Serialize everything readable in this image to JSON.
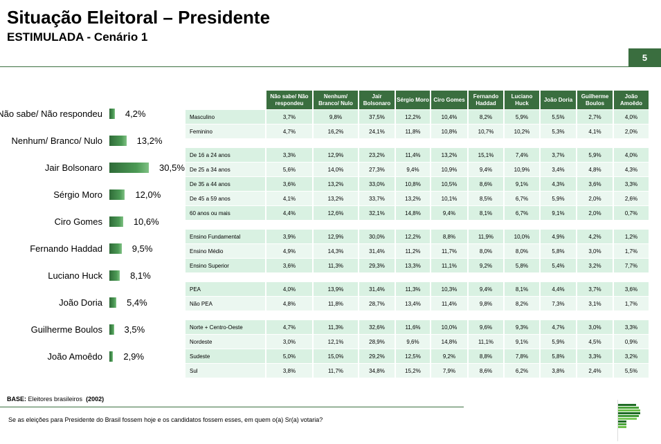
{
  "header": {
    "title": "Situação Eleitoral – Presidente",
    "subtitle": "ESTIMULADA - Cenário 1",
    "page_number": "5"
  },
  "chart_data": {
    "type": "bar",
    "orientation": "horizontal",
    "categories": [
      "Não sabe/ Não respondeu",
      "Nenhum/ Branco/ Nulo",
      "Jair Bolsonaro",
      "Sérgio Moro",
      "Ciro Gomes",
      "Fernando Haddad",
      "Luciano Huck",
      "João Doria",
      "Guilherme Boulos",
      "João Amoêdo"
    ],
    "values": [
      4.2,
      13.2,
      30.5,
      12.0,
      10.6,
      9.5,
      8.1,
      5.4,
      3.5,
      2.9
    ],
    "labels": [
      "4,2%",
      "13,2%",
      "30,5%",
      "12,0%",
      "10,6%",
      "9,5%",
      "8,1%",
      "5,4%",
      "3,5%",
      "2,9%"
    ],
    "color": "#3a7d44"
  },
  "table": {
    "columns": [
      "Não sabe/ Não respondeu",
      "Nenhum/ Branco/ Nulo",
      "Jair Bolsonaro",
      "Sérgio Moro",
      "Ciro Gomes",
      "Fernando Haddad",
      "Luciano Huck",
      "João Doria",
      "Guilherme Boulos",
      "João Amoêdo"
    ],
    "groups": [
      [
        {
          "label": "Masculino",
          "values": [
            "3,7%",
            "9,8%",
            "37,5%",
            "12,2%",
            "10,4%",
            "8,2%",
            "5,9%",
            "5,5%",
            "2,7%",
            "4,0%"
          ]
        },
        {
          "label": "Feminino",
          "values": [
            "4,7%",
            "16,2%",
            "24,1%",
            "11,8%",
            "10,8%",
            "10,7%",
            "10,2%",
            "5,3%",
            "4,1%",
            "2,0%"
          ]
        }
      ],
      [
        {
          "label": "De 16 a 24 anos",
          "values": [
            "3,3%",
            "12,9%",
            "23,2%",
            "11,4%",
            "13,2%",
            "15,1%",
            "7,4%",
            "3,7%",
            "5,9%",
            "4,0%"
          ]
        },
        {
          "label": "De 25 a 34 anos",
          "values": [
            "5,6%",
            "14,0%",
            "27,3%",
            "9,4%",
            "10,9%",
            "9,4%",
            "10,9%",
            "3,4%",
            "4,8%",
            "4,3%"
          ]
        },
        {
          "label": "De 35 a 44 anos",
          "values": [
            "3,6%",
            "13,2%",
            "33,0%",
            "10,8%",
            "10,5%",
            "8,6%",
            "9,1%",
            "4,3%",
            "3,6%",
            "3,3%"
          ]
        },
        {
          "label": "De 45 a 59 anos",
          "values": [
            "4,1%",
            "13,2%",
            "33,7%",
            "13,2%",
            "10,1%",
            "8,5%",
            "6,7%",
            "5,9%",
            "2,0%",
            "2,6%"
          ]
        },
        {
          "label": "60 anos ou mais",
          "values": [
            "4,4%",
            "12,6%",
            "32,1%",
            "14,8%",
            "9,4%",
            "8,1%",
            "6,7%",
            "9,1%",
            "2,0%",
            "0,7%"
          ]
        }
      ],
      [
        {
          "label": "Ensino Fundamental",
          "values": [
            "3,9%",
            "12,9%",
            "30,0%",
            "12,2%",
            "8,8%",
            "11,9%",
            "10,0%",
            "4,9%",
            "4,2%",
            "1,2%"
          ]
        },
        {
          "label": "Ensino Médio",
          "values": [
            "4,9%",
            "14,3%",
            "31,4%",
            "11,2%",
            "11,7%",
            "8,0%",
            "8,0%",
            "5,8%",
            "3,0%",
            "1,7%"
          ]
        },
        {
          "label": "Ensino Superior",
          "values": [
            "3,6%",
            "11,3%",
            "29,3%",
            "13,3%",
            "11,1%",
            "9,2%",
            "5,8%",
            "5,4%",
            "3,2%",
            "7,7%"
          ]
        }
      ],
      [
        {
          "label": "PEA",
          "values": [
            "4,0%",
            "13,9%",
            "31,4%",
            "11,3%",
            "10,3%",
            "9,4%",
            "8,1%",
            "4,4%",
            "3,7%",
            "3,6%"
          ]
        },
        {
          "label": "Não PEA",
          "values": [
            "4,8%",
            "11,8%",
            "28,7%",
            "13,4%",
            "11,4%",
            "9,8%",
            "8,2%",
            "7,3%",
            "3,1%",
            "1,7%"
          ]
        }
      ],
      [
        {
          "label": "Norte + Centro-Oeste",
          "values": [
            "4,7%",
            "11,3%",
            "32,6%",
            "11,6%",
            "10,0%",
            "9,6%",
            "9,3%",
            "4,7%",
            "3,0%",
            "3,3%"
          ]
        },
        {
          "label": "Nordeste",
          "values": [
            "3,0%",
            "12,1%",
            "28,9%",
            "9,6%",
            "14,8%",
            "11,1%",
            "9,1%",
            "5,9%",
            "4,5%",
            "0,9%"
          ]
        },
        {
          "label": "Sudeste",
          "values": [
            "5,0%",
            "15,0%",
            "29,2%",
            "12,5%",
            "9,2%",
            "8,8%",
            "7,8%",
            "5,8%",
            "3,3%",
            "3,2%"
          ]
        },
        {
          "label": "Sul",
          "values": [
            "3,8%",
            "11,7%",
            "34,8%",
            "15,2%",
            "7,9%",
            "8,6%",
            "6,2%",
            "3,8%",
            "2,4%",
            "5,5%"
          ]
        }
      ]
    ]
  },
  "footer": {
    "base_label": "BASE:",
    "base_text": "Eleitores brasileiros",
    "base_n": "(2002)",
    "question": "Se as eleições para Presidente do Brasil fossem hoje e os candidatos fossem esses, em quem o(a) Sr(a) votaria?"
  },
  "colors": {
    "brand_green": "#3a6e3f",
    "row_a": "#d9f1e2",
    "row_b": "#ebf7f0"
  }
}
